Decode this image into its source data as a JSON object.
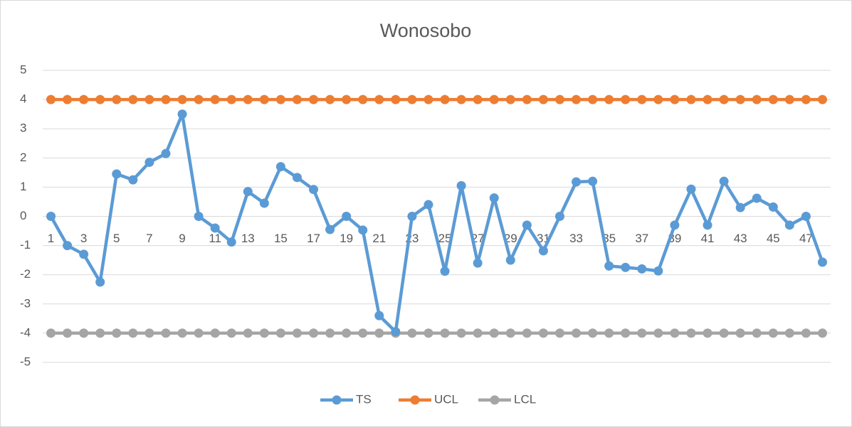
{
  "chart_data": {
    "type": "line",
    "title": "Wonosobo",
    "categories": [
      1,
      null,
      3,
      null,
      5,
      null,
      7,
      null,
      9,
      null,
      11,
      null,
      13,
      null,
      15,
      null,
      17,
      null,
      19,
      null,
      21,
      null,
      23,
      null,
      25,
      null,
      27,
      null,
      29,
      null,
      31,
      null,
      33,
      null,
      35,
      null,
      37,
      null,
      39,
      null,
      41,
      null,
      43,
      null,
      45,
      null,
      47,
      null
    ],
    "series": [
      {
        "name": "TS",
        "color": "#5b9bd5",
        "values": [
          0,
          -1,
          -1.3,
          -2.25,
          1.45,
          1.25,
          1.85,
          2.15,
          3.5,
          0,
          -0.4,
          -0.88,
          0.85,
          0.45,
          1.7,
          1.33,
          0.92,
          -0.45,
          0,
          -0.47,
          -3.4,
          -3.95,
          0,
          0.4,
          -1.88,
          1.05,
          -1.6,
          0.63,
          -1.5,
          -0.3,
          -1.18,
          0,
          1.18,
          1.2,
          -1.7,
          -1.75,
          -1.8,
          -1.87,
          -0.3,
          0.93,
          -0.3,
          1.2,
          0.3,
          0.62,
          0.32,
          -0.3,
          0,
          -1.57
        ]
      },
      {
        "name": "UCL",
        "color": "#ed7d31",
        "values": [
          4,
          4,
          4,
          4,
          4,
          4,
          4,
          4,
          4,
          4,
          4,
          4,
          4,
          4,
          4,
          4,
          4,
          4,
          4,
          4,
          4,
          4,
          4,
          4,
          4,
          4,
          4,
          4,
          4,
          4,
          4,
          4,
          4,
          4,
          4,
          4,
          4,
          4,
          4,
          4,
          4,
          4,
          4,
          4,
          4,
          4,
          4,
          4
        ]
      },
      {
        "name": "LCL",
        "color": "#a5a5a5",
        "values": [
          -4,
          -4,
          -4,
          -4,
          -4,
          -4,
          -4,
          -4,
          -4,
          -4,
          -4,
          -4,
          -4,
          -4,
          -4,
          -4,
          -4,
          -4,
          -4,
          -4,
          -4,
          -4,
          -4,
          -4,
          -4,
          -4,
          -4,
          -4,
          -4,
          -4,
          -4,
          -4,
          -4,
          -4,
          -4,
          -4,
          -4,
          -4,
          -4,
          -4,
          -4,
          -4,
          -4,
          -4,
          -4,
          -4,
          -4,
          -4
        ]
      }
    ],
    "ylim": [
      -5,
      5
    ],
    "yticks": [
      -5,
      -4,
      -3,
      -2,
      -1,
      0,
      1,
      2,
      3,
      4,
      5
    ],
    "grid": true,
    "legend": "bottom"
  }
}
